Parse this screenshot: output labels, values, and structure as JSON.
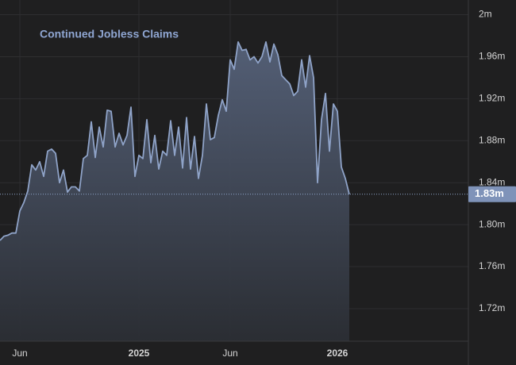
{
  "chart_data": {
    "type": "area",
    "title": "Continued Jobless Claims",
    "categories": [
      null,
      null,
      null,
      null,
      null,
      "Jun",
      null,
      null,
      null,
      null,
      null,
      null,
      null,
      null,
      null,
      null,
      null,
      null,
      null,
      null,
      null,
      null,
      null,
      null,
      null,
      null,
      null,
      null,
      null,
      null,
      null,
      null,
      null,
      null,
      null,
      "2025",
      null,
      null,
      null,
      null,
      null,
      null,
      null,
      null,
      null,
      null,
      null,
      null,
      null,
      null,
      null,
      null,
      null,
      null,
      null,
      null,
      null,
      null,
      "Jun",
      null,
      null,
      null,
      null,
      null,
      null,
      null,
      null,
      null,
      null,
      null,
      null,
      null,
      null,
      null,
      null,
      null,
      null,
      null,
      null,
      null,
      null,
      null,
      null,
      null,
      null,
      "2026",
      null,
      null,
      null
    ],
    "values": [
      1.785,
      1.789,
      1.79,
      1.792,
      1.792,
      1.813,
      1.821,
      1.832,
      1.857,
      1.852,
      1.86,
      1.846,
      1.87,
      1.872,
      1.868,
      1.84,
      1.852,
      1.831,
      1.836,
      1.836,
      1.832,
      1.863,
      1.866,
      1.898,
      1.864,
      1.893,
      1.874,
      1.909,
      1.908,
      1.874,
      1.887,
      1.876,
      1.885,
      1.912,
      1.846,
      1.866,
      1.863,
      1.9,
      1.859,
      1.885,
      1.853,
      1.87,
      1.866,
      1.899,
      1.866,
      1.893,
      1.854,
      1.902,
      1.853,
      1.884,
      1.844,
      1.866,
      1.915,
      1.881,
      1.883,
      1.904,
      1.919,
      1.908,
      1.957,
      1.948,
      1.974,
      1.966,
      1.967,
      1.957,
      1.96,
      1.954,
      1.96,
      1.974,
      1.955,
      1.972,
      1.962,
      1.942,
      1.938,
      1.934,
      1.923,
      1.927,
      1.957,
      1.931,
      1.961,
      1.94,
      1.84,
      1.9,
      1.925,
      1.87,
      1.915,
      1.908,
      1.855,
      1.844,
      1.829
    ],
    "last_value_label": "1.83m",
    "color": "#8fa3c8",
    "ylim": [
      1.689,
      2.014
    ],
    "yticks": [
      {
        "value": 1.72,
        "label": "1.72m"
      },
      {
        "value": 1.76,
        "label": "1.76m"
      },
      {
        "value": 1.8,
        "label": "1.80m"
      },
      {
        "value": 1.84,
        "label": "1.84m"
      },
      {
        "value": 1.88,
        "label": "1.88m"
      },
      {
        "value": 1.92,
        "label": "1.92m"
      },
      {
        "value": 1.96,
        "label": "1.96m"
      },
      {
        "value": 2,
        "label": "2m"
      }
    ],
    "grid": true
  }
}
